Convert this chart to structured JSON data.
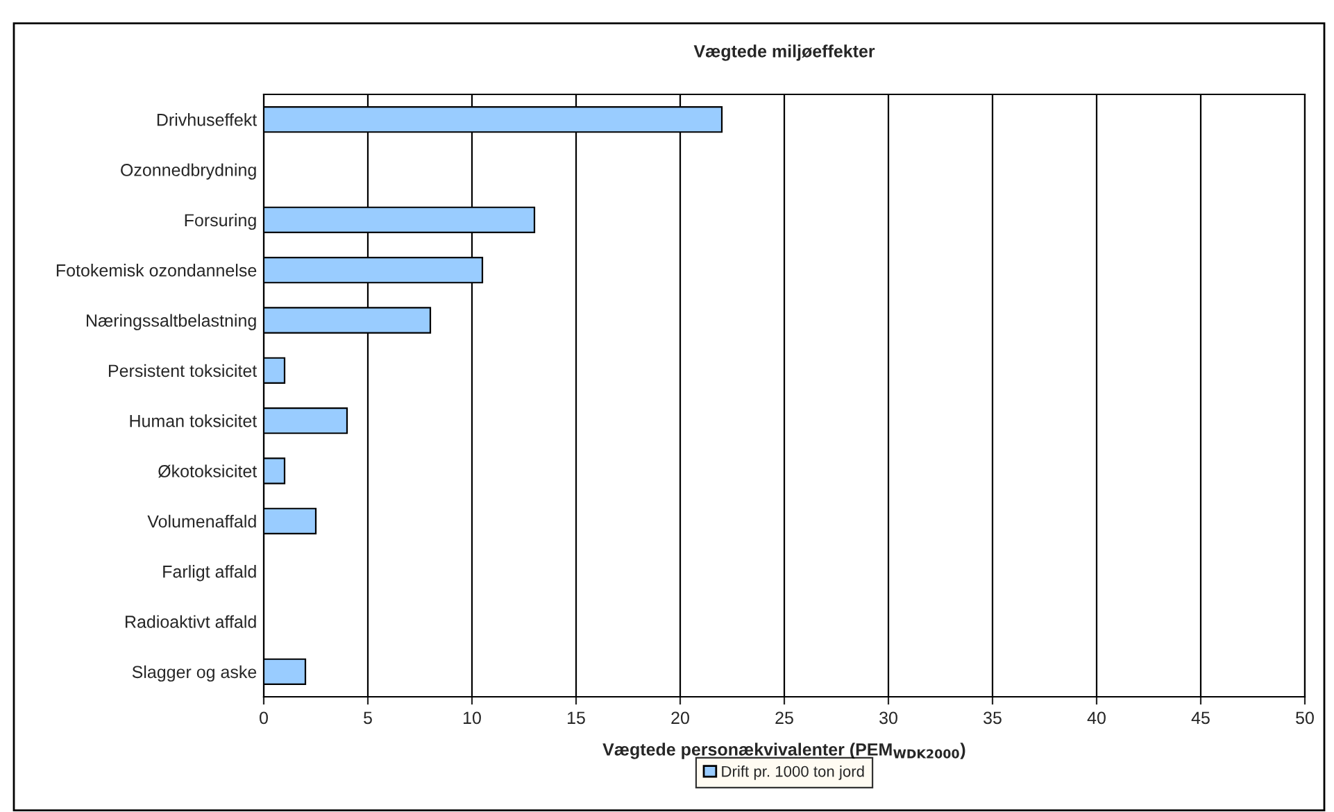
{
  "chart_data": {
    "type": "bar",
    "orientation": "horizontal",
    "title": "Vægtede miljøeffekter",
    "xlabel": "Vægtede personækvivalenter (PEM$_{WDK2000}$)",
    "categories": [
      "Drivhuseffekt",
      "Ozonnedbrydning",
      "Forsuring",
      "Fotokemisk ozondannelse",
      "Næringssaltbelastning",
      "Persistent toksicitet",
      "Human toksicitet",
      "Økotoksicitet",
      "Volumenaffald",
      "Farligt affald",
      "Radioaktivt affald",
      "Slagger og aske"
    ],
    "series": [
      {
        "name": "Drift pr. 1000 ton jord",
        "color": "#99ccff",
        "values": [
          22,
          0,
          13,
          10.5,
          8,
          1,
          4,
          1,
          2.5,
          0,
          0,
          2
        ]
      }
    ],
    "xlim": [
      0,
      50
    ],
    "xticks": [
      0,
      5,
      10,
      15,
      20,
      25,
      30,
      35,
      40,
      45,
      50
    ],
    "grid": "x",
    "legend": "bottom"
  }
}
